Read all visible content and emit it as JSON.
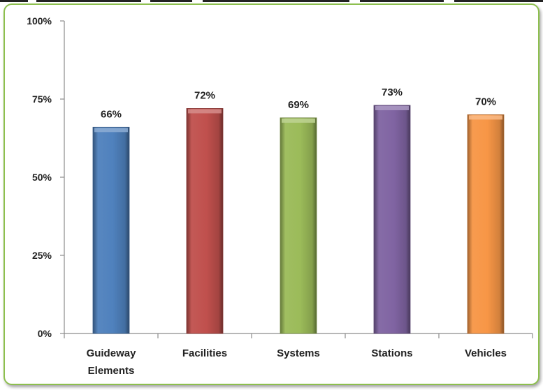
{
  "chart_data": {
    "type": "bar",
    "categories": [
      "Guideway Elements",
      "Facilities",
      "Systems",
      "Stations",
      "Vehicles"
    ],
    "category_lines": [
      [
        "Guideway",
        "Elements"
      ],
      [
        "Facilities"
      ],
      [
        "Systems"
      ],
      [
        "Stations"
      ],
      [
        "Vehicles"
      ]
    ],
    "values": [
      66,
      72,
      69,
      73,
      70
    ],
    "value_labels": [
      "66%",
      "72%",
      "69%",
      "73%",
      "70%"
    ],
    "colors": [
      "#4f81bd",
      "#c0504d",
      "#9bbb59",
      "#8064a2",
      "#f79646"
    ],
    "ylim": [
      0,
      100
    ],
    "yticks": [
      0,
      25,
      50,
      75,
      100
    ],
    "ytick_labels": [
      "0%",
      "25%",
      "50%",
      "75%",
      "100%"
    ],
    "grid": false,
    "legend": "none",
    "title": "",
    "xlabel": "",
    "ylabel": ""
  }
}
